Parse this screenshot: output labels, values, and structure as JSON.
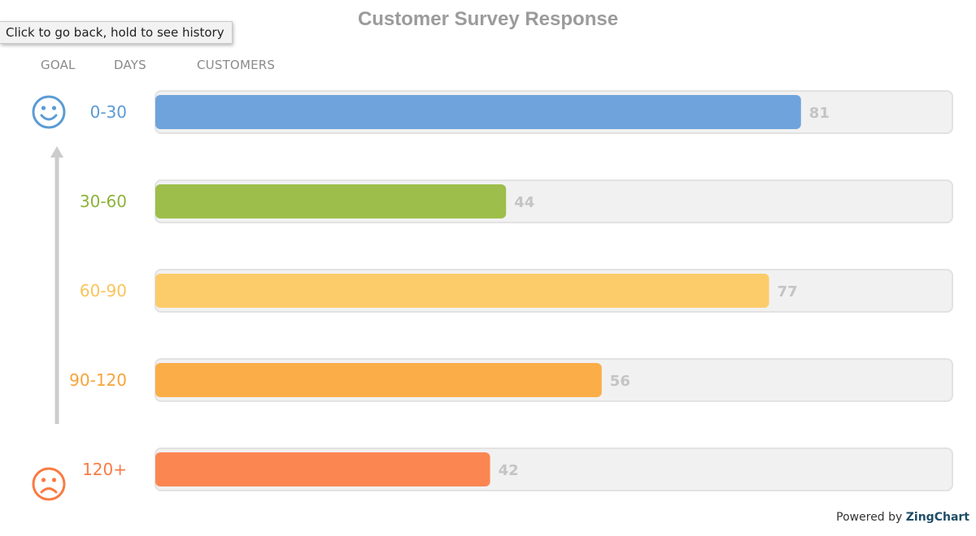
{
  "chart_data": {
    "type": "bar",
    "orientation": "horizontal",
    "title": "Customer Survey Response",
    "column_headers": {
      "goal": "GOAL",
      "days": "DAYS",
      "customers": "CUSTOMERS"
    },
    "categories": [
      "0-30",
      "30-60",
      "60-90",
      "90-120",
      "120+"
    ],
    "values": [
      81,
      44,
      77,
      56,
      42
    ],
    "colors": [
      "#6fa3dc",
      "#9dbe4a",
      "#fccc6a",
      "#fbad48",
      "#fc8652"
    ],
    "label_colors": [
      "#5b9bd5",
      "#8db33a",
      "#f9c45a",
      "#f9a33a",
      "#fa7a42"
    ],
    "track_color": "#f1f1f1",
    "xlim": [
      0,
      100
    ],
    "value_labels": true,
    "icons": {
      "top": "smiley-face-icon",
      "bottom": "frown-face-icon",
      "axis": "up-arrow-icon"
    }
  },
  "tooltip": {
    "text": "Click to go back, hold to see history"
  },
  "footer": {
    "prefix": "Powered by ",
    "brand": "ZingChart"
  }
}
